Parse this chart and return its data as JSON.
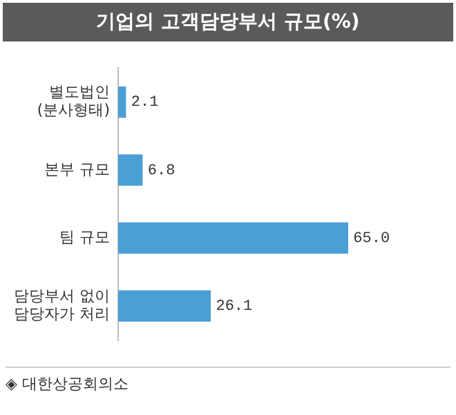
{
  "chart_data": {
    "type": "bar",
    "orientation": "horizontal",
    "title": "기업의 고객담당부서 규모(%)",
    "categories": [
      "별도법인\n(분사형태)",
      "본부 규모",
      "팀 규모",
      "담당부서 없이\n담당자가 처리"
    ],
    "values": [
      2.1,
      6.8,
      65.0,
      26.1
    ],
    "value_labels": [
      "2.1",
      "6.8",
      "65.0",
      "26.1"
    ],
    "color": "#4a9fd5",
    "grid": false,
    "legend": false,
    "annotations": [
      "◈ 대한상공회의소"
    ]
  }
}
